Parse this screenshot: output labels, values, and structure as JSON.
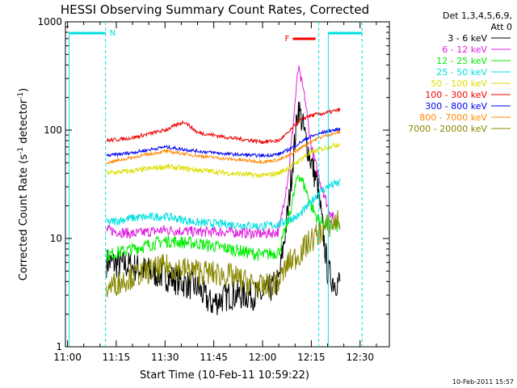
{
  "chart_data": {
    "type": "line",
    "title": "HESSI Observing Summary Count Rates, Corrected",
    "xlabel": "Start Time (10-Feb-11 10:59:22)",
    "ylabel": "Corrected Count Rate (s⁻¹ detector⁻¹)",
    "ylabel_main": "Corrected Count Rate (s",
    "ylabel_sup1": "-1",
    "ylabel_mid": " detector",
    "ylabel_sup2": "-1",
    "ylabel_end": ")",
    "y_scale": "log",
    "ylim": [
      1,
      1000
    ],
    "xlim": [
      "10:59:22",
      "12:39:00"
    ],
    "x_ticks": [
      "11:00",
      "11:15",
      "11:30",
      "11:45",
      "12:00",
      "12:15",
      "12:30"
    ],
    "x_tick_minutes": [
      0,
      15,
      30,
      45,
      60,
      75,
      90
    ],
    "y_ticks": [
      "1",
      "10",
      "100",
      "1000"
    ],
    "y_tick_values": [
      1,
      10,
      100,
      1000
    ],
    "legend_header": [
      "Det 1,3,4,5,6,9,",
      "Att 0"
    ],
    "legend_position": "right",
    "series": [
      {
        "name": "3 - 6 keV",
        "color": "#000000",
        "x": [
          12,
          20,
          30,
          40,
          44,
          50,
          60,
          65,
          68,
          71,
          73,
          75,
          77,
          80,
          82,
          84
        ],
        "y": [
          6,
          5.5,
          4.5,
          3.5,
          2.5,
          3,
          3,
          4,
          20,
          170,
          90,
          50,
          30,
          5,
          4,
          4
        ]
      },
      {
        "name": "6 - 12 keV",
        "color": "#e020e0",
        "x": [
          12,
          20,
          30,
          40,
          50,
          60,
          65,
          68,
          71,
          73,
          75,
          77,
          80,
          82,
          84
        ],
        "y": [
          12,
          11,
          12,
          11.5,
          11.5,
          11,
          11.5,
          40,
          380,
          200,
          70,
          40,
          20,
          15,
          14
        ]
      },
      {
        "name": "12 - 25 keV",
        "color": "#00ee00",
        "x": [
          12,
          20,
          30,
          40,
          50,
          60,
          65,
          68,
          71,
          73,
          75,
          77,
          80,
          82,
          84
        ],
        "y": [
          7,
          8,
          9.5,
          9,
          8,
          7,
          7.5,
          15,
          40,
          30,
          20,
          15,
          13,
          13,
          13
        ]
      },
      {
        "name": "25 - 50 keV",
        "color": "#00e0e0",
        "x": [
          12,
          20,
          30,
          40,
          50,
          60,
          65,
          68,
          71,
          74,
          77,
          80,
          84
        ],
        "y": [
          14,
          15.5,
          16,
          14,
          13.5,
          13,
          13.5,
          15,
          16,
          20,
          26,
          30,
          33
        ]
      },
      {
        "name": "50 - 100 keV",
        "color": "#dddd00",
        "x": [
          12,
          20,
          30,
          40,
          50,
          60,
          65,
          68,
          71,
          74,
          77,
          80,
          84
        ],
        "y": [
          40,
          42,
          46,
          43,
          40,
          38,
          40,
          45,
          52,
          60,
          65,
          70,
          75
        ]
      },
      {
        "name": "100 - 300 keV",
        "color": "#ee0000",
        "x": [
          12,
          20,
          30,
          36,
          40,
          50,
          60,
          65,
          68,
          71,
          74,
          77,
          80,
          84
        ],
        "y": [
          80,
          85,
          100,
          120,
          95,
          85,
          78,
          80,
          95,
          120,
          135,
          140,
          145,
          155
        ]
      },
      {
        "name": "300 - 800 keV",
        "color": "#0000ee",
        "x": [
          12,
          20,
          30,
          40,
          50,
          60,
          65,
          68,
          71,
          74,
          77,
          80,
          84
        ],
        "y": [
          58,
          62,
          70,
          64,
          60,
          58,
          60,
          66,
          75,
          85,
          92,
          98,
          102
        ]
      },
      {
        "name": "800 - 7000 keV",
        "color": "#ff8800",
        "x": [
          12,
          20,
          30,
          40,
          50,
          60,
          65,
          68,
          71,
          74,
          77,
          80,
          84
        ],
        "y": [
          50,
          56,
          64,
          58,
          54,
          51,
          53,
          58,
          66,
          76,
          84,
          90,
          96
        ]
      },
      {
        "name": "7000 - 20000 keV",
        "color": "#888800",
        "x": [
          12,
          20,
          30,
          40,
          50,
          60,
          65,
          68,
          71,
          74,
          77,
          80,
          82,
          84
        ],
        "y": [
          3.5,
          4.5,
          5.5,
          5,
          4.5,
          3.5,
          4,
          6,
          7,
          9,
          11,
          13,
          14,
          15
        ]
      }
    ],
    "annotations": [
      {
        "label": "N",
        "color": "#00e0e0",
        "x_start": 0.5,
        "x_end": 11.7,
        "x_line": 11.7
      },
      {
        "label": "F",
        "color": "#ee0000",
        "x_start": 69.3,
        "x_end": 76.3
      },
      {
        "label": "",
        "color": "#00e0e0",
        "x_start": 80.2,
        "x_end": 90.6,
        "x_line": 90.6
      },
      {
        "label": "",
        "color": "#00e0e0",
        "x_line": 77.3
      }
    ],
    "date_stamp": "10-Feb-2011 15:57"
  }
}
